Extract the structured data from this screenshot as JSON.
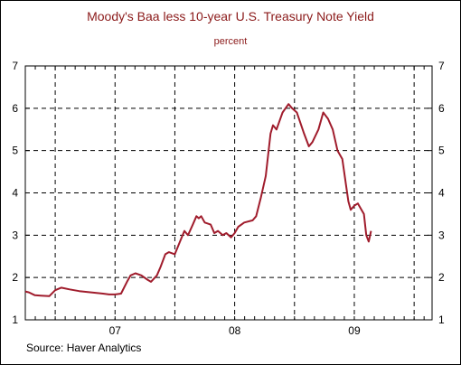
{
  "chart_data": {
    "type": "line",
    "title": "Moody's Baa less 10-year U.S. Treasury Note Yield",
    "subtitle": "percent",
    "source": "Source: Haver Analytics",
    "ylim": [
      1,
      7
    ],
    "yticks": [
      "1",
      "2",
      "3",
      "4",
      "5",
      "6",
      "7"
    ],
    "xlim": [
      2006.25,
      2009.65
    ],
    "xtick_labels": [
      {
        "x": 2007.0,
        "label": "07"
      },
      {
        "x": 2008.0,
        "label": "08"
      },
      {
        "x": 2009.0,
        "label": "09"
      }
    ],
    "x_gridlines": [
      2006.5,
      2007.0,
      2007.5,
      2008.0,
      2008.5,
      2009.0,
      2009.5
    ],
    "grid": true,
    "line_color": "#a01c2c",
    "series": [
      {
        "x": [
          2006.25,
          2006.28,
          2006.33,
          2006.38,
          2006.45,
          2006.5,
          2006.55,
          2006.62,
          2006.7,
          2006.8,
          2006.9,
          2006.95,
          2007.0,
          2007.05,
          2007.1,
          2007.13,
          2007.17,
          2007.22,
          2007.27,
          2007.3,
          2007.35,
          2007.38,
          2007.42,
          2007.45,
          2007.5,
          2007.55,
          2007.58,
          2007.61,
          2007.65,
          2007.68,
          2007.7,
          2007.72,
          2007.75,
          2007.8,
          2007.83,
          2007.86,
          2007.9,
          2007.93,
          2007.97,
          2008.0,
          2008.03,
          2008.08,
          2008.15,
          2008.18,
          2008.22,
          2008.26,
          2008.3,
          2008.32,
          2008.35,
          2008.4,
          2008.45,
          2008.48,
          2008.52,
          2008.58,
          2008.62,
          2008.65,
          2008.7,
          2008.74,
          2008.78,
          2008.82,
          2008.86,
          2008.9,
          2008.93,
          2008.95,
          2008.97,
          2009.0,
          2009.03,
          2009.06,
          2009.08,
          2009.1,
          2009.12,
          2009.14
        ],
        "y": [
          1.67,
          1.65,
          1.58,
          1.57,
          1.56,
          1.7,
          1.76,
          1.72,
          1.68,
          1.65,
          1.62,
          1.6,
          1.6,
          1.62,
          1.9,
          2.05,
          2.1,
          2.05,
          1.95,
          1.9,
          2.05,
          2.25,
          2.55,
          2.6,
          2.55,
          2.9,
          3.1,
          3.0,
          3.25,
          3.45,
          3.4,
          3.45,
          3.3,
          3.25,
          3.05,
          3.1,
          3.0,
          3.05,
          2.95,
          3.05,
          3.2,
          3.3,
          3.35,
          3.45,
          3.9,
          4.4,
          5.4,
          5.6,
          5.5,
          5.9,
          6.1,
          6.0,
          5.9,
          5.4,
          5.1,
          5.2,
          5.5,
          5.9,
          5.75,
          5.5,
          5.0,
          4.8,
          4.2,
          3.8,
          3.6,
          3.7,
          3.75,
          3.6,
          3.5,
          3.0,
          2.85,
          3.1
        ]
      }
    ]
  }
}
